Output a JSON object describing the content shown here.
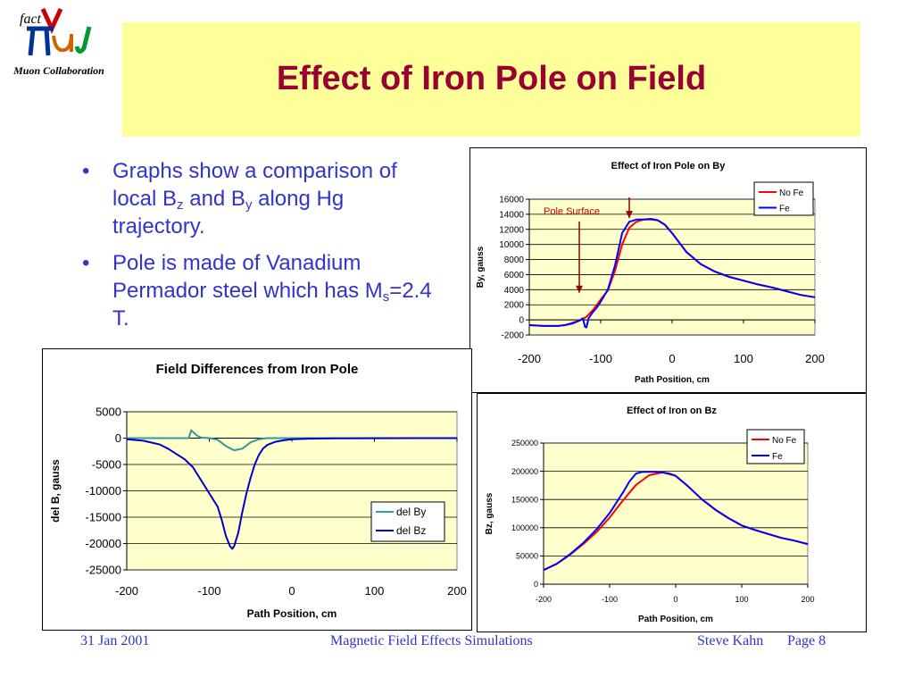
{
  "logo": {
    "top_text": "fact",
    "caption": "Muon Collaboration"
  },
  "title": "Effect of Iron Pole on Field",
  "bullets": {
    "b1": {
      "pre": "Graphs show a comparison of local B",
      "sub1": "z",
      "mid": " and B",
      "sub2": "y",
      "post": " along Hg trajectory."
    },
    "b2": {
      "pre": "Pole is made of Vanadium Permador steel which has M",
      "sub": "s",
      "post": "=2.4 T."
    }
  },
  "footer": {
    "date": "31 Jan 2001",
    "center": "Magnetic Field Effects Simulations",
    "author": "Steve Kahn",
    "page": "Page 8"
  },
  "colors": {
    "title": "#990033",
    "text": "#3333cc",
    "plot_bg": "#ffffcc",
    "no_fe": "#ff0000",
    "fe": "#0000ff",
    "del_by": "#339999",
    "del_bz": "#0000cc"
  },
  "chart_data": [
    {
      "type": "line",
      "title": "Effect of Iron Pole on By",
      "xlabel": "Path Position, cm",
      "ylabel": "By, gauss",
      "xlim": [
        -200,
        200
      ],
      "ylim": [
        -2000,
        16000
      ],
      "x_ticks": [
        "-200",
        "-100",
        "0",
        "100",
        "200"
      ],
      "y_ticks": [
        "-2000",
        "0",
        "2000",
        "4000",
        "6000",
        "8000",
        "10000",
        "12000",
        "14000",
        "16000"
      ],
      "annotation": "Pole Surface",
      "legend_position": "top-right",
      "series": [
        {
          "name": "No Fe",
          "color": "#ff0000",
          "x": [
            -200,
            -180,
            -160,
            -150,
            -140,
            -130,
            -120,
            -110,
            -100,
            -90,
            -80,
            -70,
            -60,
            -50,
            -40,
            -30,
            -20,
            -10,
            0,
            20,
            40,
            60,
            80,
            100,
            120,
            140,
            160,
            180,
            200
          ],
          "y": [
            -700,
            -800,
            -800,
            -700,
            -400,
            -100,
            400,
            1400,
            2700,
            3900,
            6500,
            10000,
            12200,
            13000,
            13300,
            13300,
            13200,
            12600,
            11500,
            9000,
            7400,
            6400,
            5700,
            5200,
            4700,
            4300,
            3800,
            3300,
            3000
          ]
        },
        {
          "name": "Fe",
          "color": "#0000ff",
          "x": [
            -200,
            -180,
            -160,
            -150,
            -140,
            -130,
            -125,
            -122,
            -120,
            -117,
            -112,
            -105,
            -100,
            -90,
            -80,
            -70,
            -60,
            -50,
            -40,
            -30,
            -20,
            -10,
            0,
            20,
            40,
            60,
            80,
            100,
            120,
            140,
            160,
            180,
            200
          ],
          "y": [
            -700,
            -800,
            -800,
            -700,
            -500,
            -100,
            200,
            -900,
            -1000,
            200,
            900,
            1700,
            2400,
            4000,
            7200,
            11500,
            13000,
            13300,
            13300,
            13400,
            13200,
            12600,
            11500,
            9000,
            7400,
            6400,
            5700,
            5200,
            4700,
            4300,
            3800,
            3300,
            3000
          ]
        }
      ]
    },
    {
      "type": "line",
      "title": "Field Differences from Iron Pole",
      "xlabel": "Path Position, cm",
      "ylabel": "del B, gauss",
      "xlim": [
        -200,
        200
      ],
      "ylim": [
        -25000,
        5000
      ],
      "x_ticks": [
        "-200",
        "-100",
        "0",
        "100",
        "200"
      ],
      "y_ticks": [
        "5000",
        "0",
        "-5000",
        "-10000",
        "-15000",
        "-20000",
        "-25000"
      ],
      "legend_position": "right",
      "series": [
        {
          "name": "del By",
          "color": "#339999",
          "x": [
            -200,
            -150,
            -125,
            -122,
            -120,
            -115,
            -110,
            -100,
            -90,
            -80,
            -70,
            -60,
            -50,
            -40,
            -30,
            0,
            50,
            100,
            150,
            200
          ],
          "y": [
            0,
            0,
            0,
            1500,
            1200,
            500,
            100,
            0,
            -300,
            -1500,
            -2300,
            -2000,
            -800,
            -200,
            0,
            0,
            0,
            0,
            0,
            0
          ]
        },
        {
          "name": "del Bz",
          "color": "#0000cc",
          "x": [
            -200,
            -180,
            -160,
            -150,
            -140,
            -130,
            -120,
            -110,
            -100,
            -90,
            -85,
            -80,
            -75,
            -72,
            -70,
            -65,
            -60,
            -55,
            -50,
            -45,
            -40,
            -35,
            -30,
            -20,
            -10,
            0,
            20,
            50,
            100,
            150,
            200
          ],
          "y": [
            -200,
            -500,
            -1200,
            -2000,
            -3000,
            -4000,
            -5500,
            -8000,
            -10500,
            -13000,
            -15500,
            -18500,
            -20500,
            -21000,
            -20500,
            -18000,
            -14000,
            -10500,
            -7500,
            -5000,
            -3200,
            -2000,
            -1300,
            -700,
            -400,
            -200,
            -100,
            -50,
            -20,
            0,
            0
          ]
        }
      ]
    },
    {
      "type": "line",
      "title": "Effect of Iron on Bz",
      "xlabel": "Path Position, cm",
      "ylabel": "Bz, gauss",
      "xlim": [
        -200,
        200
      ],
      "ylim": [
        0,
        250000
      ],
      "x_ticks": [
        "-200",
        "-100",
        "0",
        "100",
        "200"
      ],
      "y_ticks": [
        "0",
        "50000",
        "100000",
        "150000",
        "200000",
        "250000"
      ],
      "legend_position": "top-right",
      "series": [
        {
          "name": "No Fe",
          "color": "#ff0000",
          "x": [
            -200,
            -180,
            -160,
            -140,
            -120,
            -100,
            -80,
            -60,
            -40,
            -20,
            0,
            20,
            40,
            60,
            80,
            100,
            120,
            140,
            160,
            180,
            200
          ],
          "y": [
            25000,
            36000,
            52000,
            71000,
            92000,
            118000,
            148000,
            176000,
            193000,
            198000,
            192000,
            172000,
            150000,
            132000,
            117000,
            104000,
            96000,
            89000,
            82000,
            77000,
            71000
          ]
        },
        {
          "name": "Fe",
          "color": "#0000ff",
          "x": [
            -200,
            -180,
            -160,
            -140,
            -120,
            -100,
            -80,
            -70,
            -60,
            -50,
            -40,
            -30,
            -20,
            -10,
            0,
            20,
            40,
            60,
            80,
            100,
            120,
            140,
            160,
            180,
            200
          ],
          "y": [
            25000,
            36000,
            53000,
            73000,
            97000,
            126000,
            162000,
            182000,
            196000,
            199000,
            199000,
            199000,
            198000,
            196000,
            192000,
            172000,
            150000,
            132000,
            117000,
            104000,
            96000,
            89000,
            82000,
            77000,
            71000
          ]
        }
      ]
    }
  ]
}
